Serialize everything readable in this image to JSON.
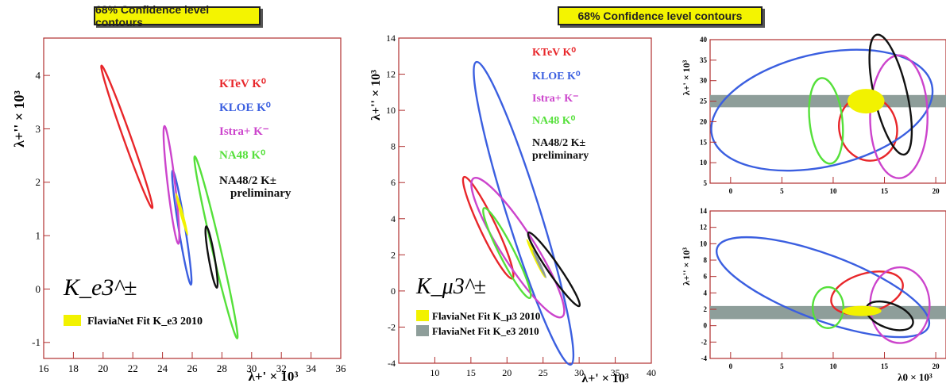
{
  "banners": [
    "68% Confidence level contours",
    "68% Confidence level contours"
  ],
  "colors": {
    "ktev": "#e8262a",
    "kloe": "#3b5fe0",
    "istra": "#cc44cc",
    "na48": "#55e03a",
    "na48_2": "#111111",
    "fit": "#f2f200",
    "fit_grey": "#8e9e9a",
    "frame": "#b03030"
  },
  "chart_data": [
    {
      "type": "contour",
      "title": "68% Confidence level contours",
      "process_label": "K_e3^±",
      "xlabel": "λ+' × 10³",
      "ylabel": "λ+'' × 10³",
      "xlim": [
        16,
        36
      ],
      "ylim": [
        -1.3,
        4.7
      ],
      "xticks": [
        "16",
        "18",
        "20",
        "22",
        "24",
        "26",
        "28",
        "30",
        "32",
        "34",
        "36"
      ],
      "yticks": [
        "-1",
        "0",
        "1",
        "2",
        "3",
        "4"
      ],
      "legend": [
        {
          "label": "KTeV K⁰",
          "color": "#e8262a"
        },
        {
          "label": "KLOE K⁰",
          "color": "#3b5fe0"
        },
        {
          "label": "Istra+ K⁻",
          "color": "#cc44cc"
        },
        {
          "label": "NA48 K⁰",
          "color": "#55e03a"
        },
        {
          "label": "NA48/2 K±",
          "color": "#111111"
        },
        {
          "label": "preliminary",
          "color": "#111111"
        }
      ],
      "fit_legend": [
        "FlaviaNet Fit K_e3 2010"
      ],
      "series": [
        {
          "name": "KTeV K⁰",
          "color": "#e8262a",
          "cx": 21.6,
          "cy": 2.85,
          "rx": 5.1,
          "ry": 0.25,
          "angle": -38
        },
        {
          "name": "KLOE K⁰",
          "color": "#3b5fe0",
          "cx": 25.3,
          "cy": 1.15,
          "rx": 3.9,
          "ry": 0.22,
          "angle": -60
        },
        {
          "name": "Istra+ K⁻",
          "color": "#cc44cc",
          "cx": 24.6,
          "cy": 1.95,
          "rx": 4.0,
          "ry": 0.25,
          "angle": -67
        },
        {
          "name": "NA48 K⁰",
          "color": "#55e03a",
          "cx": 27.6,
          "cy": 0.78,
          "rx": 6.3,
          "ry": 0.28,
          "angle": -50
        },
        {
          "name": "NA48/2 K±",
          "color": "#111111",
          "cx": 27.3,
          "cy": 0.6,
          "rx": 2.1,
          "ry": 0.2,
          "angle": -58
        },
        {
          "name": "FlaviaNet Fit K_e3 2010",
          "color": "#f2f200",
          "cx": 25.3,
          "cy": 1.4,
          "rx": 1.5,
          "ry": 0.12,
          "angle": -45,
          "filled": true
        }
      ]
    },
    {
      "type": "contour",
      "title": "68% Confidence level contours",
      "process_label": "K_μ3^±",
      "xlabel": "λ+' × 10³",
      "ylabel": "λ+'' × 10³",
      "xlim": [
        5,
        40
      ],
      "ylim": [
        -4,
        14
      ],
      "xticks": [
        "10",
        "15",
        "20",
        "25",
        "30",
        "35",
        "40"
      ],
      "yticks": [
        "-4",
        "-2",
        "0",
        "2",
        "4",
        "6",
        "8",
        "10",
        "12",
        "14"
      ],
      "legend": [
        {
          "label": "KTeV K⁰",
          "color": "#e8262a"
        },
        {
          "label": "KLOE K⁰",
          "color": "#3b5fe0"
        },
        {
          "label": "Istra+ K⁻",
          "color": "#cc44cc"
        },
        {
          "label": "NA48 K⁰",
          "color": "#55e03a"
        },
        {
          "label": "NA48/2 K±",
          "color": "#111111"
        },
        {
          "label": "preliminary",
          "color": "#111111"
        }
      ],
      "fit_legend": [
        "FlaviaNet Fit K_μ3 2010",
        "FlaviaNet Fit K_e3 2010"
      ],
      "series": [
        {
          "name": "KTeV K⁰",
          "color": "#e8262a",
          "cx": 17.4,
          "cy": 3.5,
          "rx": 7.8,
          "ry": 1.1,
          "angle": -40
        },
        {
          "name": "KLOE K⁰",
          "color": "#3b5fe0",
          "cx": 22.3,
          "cy": 4.3,
          "rx": 22.0,
          "ry": 2.3,
          "angle": -52
        },
        {
          "name": "Istra+ K⁻",
          "color": "#cc44cc",
          "cx": 21.5,
          "cy": 2.4,
          "rx": 11.4,
          "ry": 2.3,
          "angle": -32
        },
        {
          "name": "NA48 K⁰",
          "color": "#55e03a",
          "cx": 20.0,
          "cy": 2.1,
          "rx": 7.0,
          "ry": 1.0,
          "angle": -38
        },
        {
          "name": "NA48/2 K±",
          "color": "#111111",
          "cx": 26.5,
          "cy": 1.2,
          "rx": 6.2,
          "ry": 0.8,
          "angle": -30
        },
        {
          "name": "FlaviaNet Fit K_μ3 2010",
          "color": "#f2f200",
          "cx": 24.0,
          "cy": 1.8,
          "rx": 3.0,
          "ry": 0.25,
          "angle": -40,
          "filled": true
        },
        {
          "name": "FlaviaNet Fit K_e3 2010",
          "color": "#8e9e9a",
          "cx": 24.5,
          "cy": 1.5,
          "rx": 2.2,
          "ry": 0.2,
          "angle": -40,
          "filled": true
        }
      ]
    },
    {
      "type": "contour",
      "ylabel": "λ+' × 10³",
      "xlim": [
        -2,
        21
      ],
      "ylim": [
        5,
        40
      ],
      "xticks": [
        "0",
        "5",
        "10",
        "15",
        "20"
      ],
      "yticks": [
        "5",
        "10",
        "15",
        "20",
        "25",
        "30",
        "35",
        "40"
      ],
      "band": {
        "y": [
          23.5,
          26.5
        ],
        "color": "#8e9e9a"
      },
      "series": [
        {
          "name": "KTeV K⁰",
          "color": "#e8262a",
          "cx": 13.4,
          "cy": 18.4,
          "rx": 2.8,
          "ry": 3.2,
          "angle": 35
        },
        {
          "name": "KLOE K⁰",
          "color": "#3b5fe0",
          "cx": 8.9,
          "cy": 22.8,
          "rx": 11.0,
          "ry": 5.5,
          "angle": 30
        },
        {
          "name": "Istra+ K⁻",
          "color": "#cc44cc",
          "cx": 16.4,
          "cy": 21.2,
          "rx": 2.8,
          "ry": 6.0,
          "angle": 0
        },
        {
          "name": "NA48 K⁰",
          "color": "#55e03a",
          "cx": 9.3,
          "cy": 20.2,
          "rx": 1.6,
          "ry": 4.2,
          "angle": 15
        },
        {
          "name": "NA48/2 K±",
          "color": "#111111",
          "cx": 15.6,
          "cy": 26.6,
          "rx": 1.6,
          "ry": 6.0,
          "angle": 30
        },
        {
          "name": "FlaviaNet Fit",
          "color": "#f2f200",
          "cx": 13.2,
          "cy": 25.0,
          "rx": 1.8,
          "ry": 1.2,
          "angle": 0,
          "filled": true
        }
      ]
    },
    {
      "type": "contour",
      "xlabel": "λ0 × 10³",
      "ylabel": "λ+'' × 10³",
      "xlim": [
        -2,
        21
      ],
      "ylim": [
        -4,
        14
      ],
      "xticks": [
        "0",
        "5",
        "10",
        "15",
        "20"
      ],
      "yticks": [
        "-4",
        "-2",
        "0",
        "2",
        "4",
        "6",
        "8",
        "10",
        "12",
        "14"
      ],
      "band": {
        "y": [
          0.8,
          2.4
        ],
        "color": "#8e9e9a"
      },
      "series": [
        {
          "name": "KTeV K⁰",
          "color": "#e8262a",
          "cx": 13.3,
          "cy": 4.0,
          "rx": 3.6,
          "ry": 1.9,
          "angle": 20
        },
        {
          "name": "KLOE K⁰",
          "color": "#3b5fe0",
          "cx": 9.0,
          "cy": 4.7,
          "rx": 11.0,
          "ry": 3.2,
          "angle": -25
        },
        {
          "name": "Istra+ K⁻",
          "color": "#cc44cc",
          "cx": 16.5,
          "cy": 2.5,
          "rx": 2.9,
          "ry": 3.7,
          "angle": 0
        },
        {
          "name": "NA48 K⁰",
          "color": "#55e03a",
          "cx": 9.5,
          "cy": 2.2,
          "rx": 1.5,
          "ry": 2.0,
          "angle": 0
        },
        {
          "name": "NA48/2 K±",
          "color": "#111111",
          "cx": 15.5,
          "cy": 1.2,
          "rx": 2.4,
          "ry": 1.2,
          "angle": -25
        },
        {
          "name": "FlaviaNet Fit",
          "color": "#f2f200",
          "cx": 12.8,
          "cy": 1.8,
          "rx": 1.9,
          "ry": 0.5,
          "angle": 0,
          "filled": true
        }
      ]
    }
  ]
}
